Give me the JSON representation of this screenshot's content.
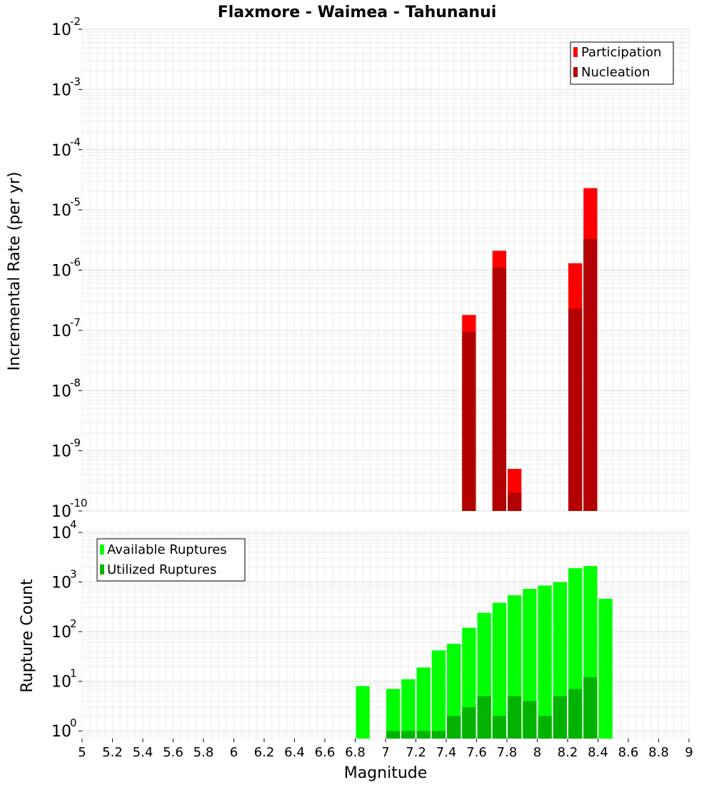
{
  "chart_data": [
    {
      "type": "bar",
      "title": "Flaxmore - Waimea - Tahunanui",
      "xlabel": "",
      "ylabel": "Incremental Rate (per yr)",
      "y_scale": "log",
      "ylim": [
        1e-10,
        0.01
      ],
      "xlim": [
        5,
        9
      ],
      "grid": true,
      "legend_position": "top-right",
      "series": [
        {
          "name": "Participation",
          "color": "#ff0000",
          "points": [
            {
              "x": 7.55,
              "y": 1.8e-07
            },
            {
              "x": 7.75,
              "y": 2.1e-06
            },
            {
              "x": 7.85,
              "y": 5e-10
            },
            {
              "x": 8.25,
              "y": 1.3e-06
            },
            {
              "x": 8.35,
              "y": 2.3e-05
            }
          ]
        },
        {
          "name": "Nucleation",
          "color": "#b30000",
          "points": [
            {
              "x": 7.55,
              "y": 9.5e-08
            },
            {
              "x": 7.75,
              "y": 1.1e-06
            },
            {
              "x": 7.85,
              "y": 2e-10
            },
            {
              "x": 8.25,
              "y": 2.3e-07
            },
            {
              "x": 8.35,
              "y": 3.3e-06
            }
          ]
        }
      ]
    },
    {
      "type": "bar",
      "title": "",
      "xlabel": "Magnitude",
      "ylabel": "Rupture Count",
      "y_scale": "log",
      "ylim": [
        0.7,
        10000
      ],
      "xlim": [
        5,
        9
      ],
      "grid": true,
      "legend_position": "top-left",
      "series": [
        {
          "name": "Available Ruptures",
          "color": "#00ff00",
          "points": [
            {
              "x": 6.85,
              "y": 8
            },
            {
              "x": 7.05,
              "y": 7
            },
            {
              "x": 7.15,
              "y": 11
            },
            {
              "x": 7.25,
              "y": 19
            },
            {
              "x": 7.35,
              "y": 42
            },
            {
              "x": 7.45,
              "y": 57
            },
            {
              "x": 7.55,
              "y": 120
            },
            {
              "x": 7.65,
              "y": 240
            },
            {
              "x": 7.75,
              "y": 380
            },
            {
              "x": 7.85,
              "y": 540
            },
            {
              "x": 7.95,
              "y": 730
            },
            {
              "x": 8.05,
              "y": 850
            },
            {
              "x": 8.15,
              "y": 1000
            },
            {
              "x": 8.25,
              "y": 1900
            },
            {
              "x": 8.35,
              "y": 2100
            },
            {
              "x": 8.45,
              "y": 460
            }
          ]
        },
        {
          "name": "Utilized Ruptures",
          "color": "#00b300",
          "points": [
            {
              "x": 7.05,
              "y": 1
            },
            {
              "x": 7.15,
              "y": 1
            },
            {
              "x": 7.25,
              "y": 1
            },
            {
              "x": 7.35,
              "y": 1
            },
            {
              "x": 7.45,
              "y": 2
            },
            {
              "x": 7.55,
              "y": 3
            },
            {
              "x": 7.65,
              "y": 5
            },
            {
              "x": 7.75,
              "y": 2
            },
            {
              "x": 7.85,
              "y": 5
            },
            {
              "x": 7.95,
              "y": 4
            },
            {
              "x": 8.05,
              "y": 2
            },
            {
              "x": 8.15,
              "y": 5
            },
            {
              "x": 8.25,
              "y": 7
            },
            {
              "x": 8.35,
              "y": 12
            }
          ]
        }
      ]
    }
  ],
  "x_ticks": [
    "5",
    "5.2",
    "5.4",
    "5.6",
    "5.8",
    "6",
    "6.2",
    "6.4",
    "6.6",
    "6.8",
    "7",
    "7.2",
    "7.4",
    "7.6",
    "7.8",
    "8",
    "8.2",
    "8.4",
    "8.6",
    "8.8",
    "9"
  ],
  "top_y_ticks": [
    {
      "base": "10",
      "exp": "-10"
    },
    {
      "base": "10",
      "exp": "-9"
    },
    {
      "base": "10",
      "exp": "-8"
    },
    {
      "base": "10",
      "exp": "-7"
    },
    {
      "base": "10",
      "exp": "-6"
    },
    {
      "base": "10",
      "exp": "-5"
    },
    {
      "base": "10",
      "exp": "-4"
    },
    {
      "base": "10",
      "exp": "-3"
    },
    {
      "base": "10",
      "exp": "-2"
    }
  ],
  "bottom_y_ticks": [
    {
      "base": "10",
      "exp": "0"
    },
    {
      "base": "10",
      "exp": "1"
    },
    {
      "base": "10",
      "exp": "2"
    },
    {
      "base": "10",
      "exp": "3"
    },
    {
      "base": "10",
      "exp": "4"
    }
  ],
  "bar_width": 0.1
}
